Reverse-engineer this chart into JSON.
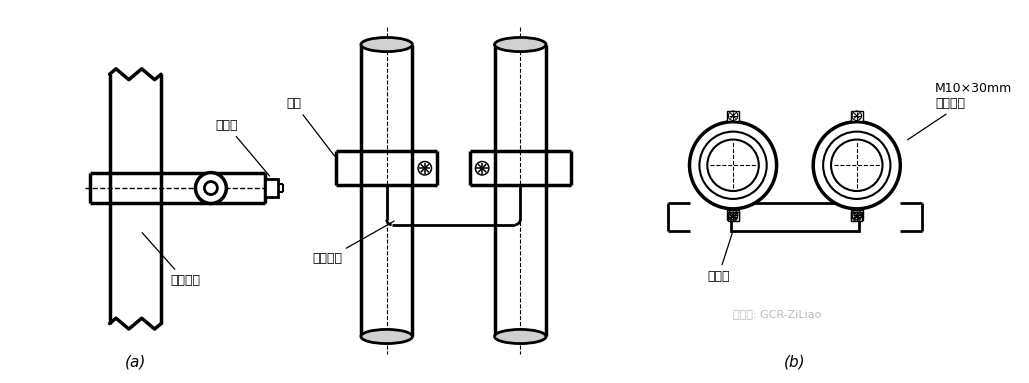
{
  "bg_color": "#ffffff",
  "line_color": "#000000",
  "label_a": "(a)",
  "label_b": "(b)",
  "text_lianjiexian": "连接线",
  "text_jinshuguandao": "金属管道",
  "text_baojin": "抱筜",
  "text_kuajiexian": "跨接线",
  "text_bolt1": "M10×30mm",
  "text_bolt2": "镇锌螺栓",
  "text_watermark": "微信号: GCR-ZiLiao",
  "lw": 1.5,
  "lw2": 2.0,
  "lw3": 2.5,
  "font_size": 9,
  "font_size_label": 11,
  "figw": 10.29,
  "figh": 3.83,
  "dpi": 100
}
